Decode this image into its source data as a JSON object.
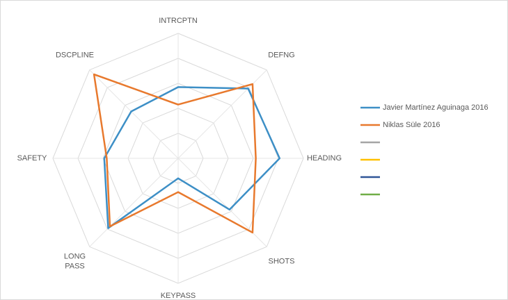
{
  "chart_data": {
    "type": "radar",
    "categories": [
      "INTRCPTN",
      "DEFNG",
      "HEADING",
      "SHOTS",
      "KEYPASS",
      "LONG PASS",
      "SAFETY",
      "DSCPLINE"
    ],
    "series": [
      {
        "name": "Javier Martínez Aguinaga 2016",
        "color": "#3d8fc6",
        "values": [
          57,
          79,
          81,
          58,
          16,
          79,
          59,
          53
        ]
      },
      {
        "name": "Niklas Süle 2016",
        "color": "#e8792d",
        "values": [
          43,
          84,
          62,
          84,
          27,
          77,
          57,
          95
        ]
      },
      {
        "name": null,
        "color": "#a5a5a5",
        "values": [
          null,
          null,
          null,
          null,
          null,
          null,
          null,
          null
        ]
      },
      {
        "name": null,
        "color": "#ffc000",
        "values": [
          null,
          null,
          null,
          null,
          null,
          null,
          null,
          null
        ]
      },
      {
        "name": null,
        "color": "#2f5597",
        "values": [
          null,
          null,
          null,
          null,
          null,
          null,
          null,
          null
        ]
      },
      {
        "name": null,
        "color": "#70ad47",
        "values": [
          null,
          null,
          null,
          null,
          null,
          null,
          null,
          null
        ]
      }
    ],
    "ylim": [
      0,
      100
    ],
    "yticks": [
      20,
      40,
      60,
      80,
      100
    ],
    "grid": true,
    "legend": "right"
  }
}
